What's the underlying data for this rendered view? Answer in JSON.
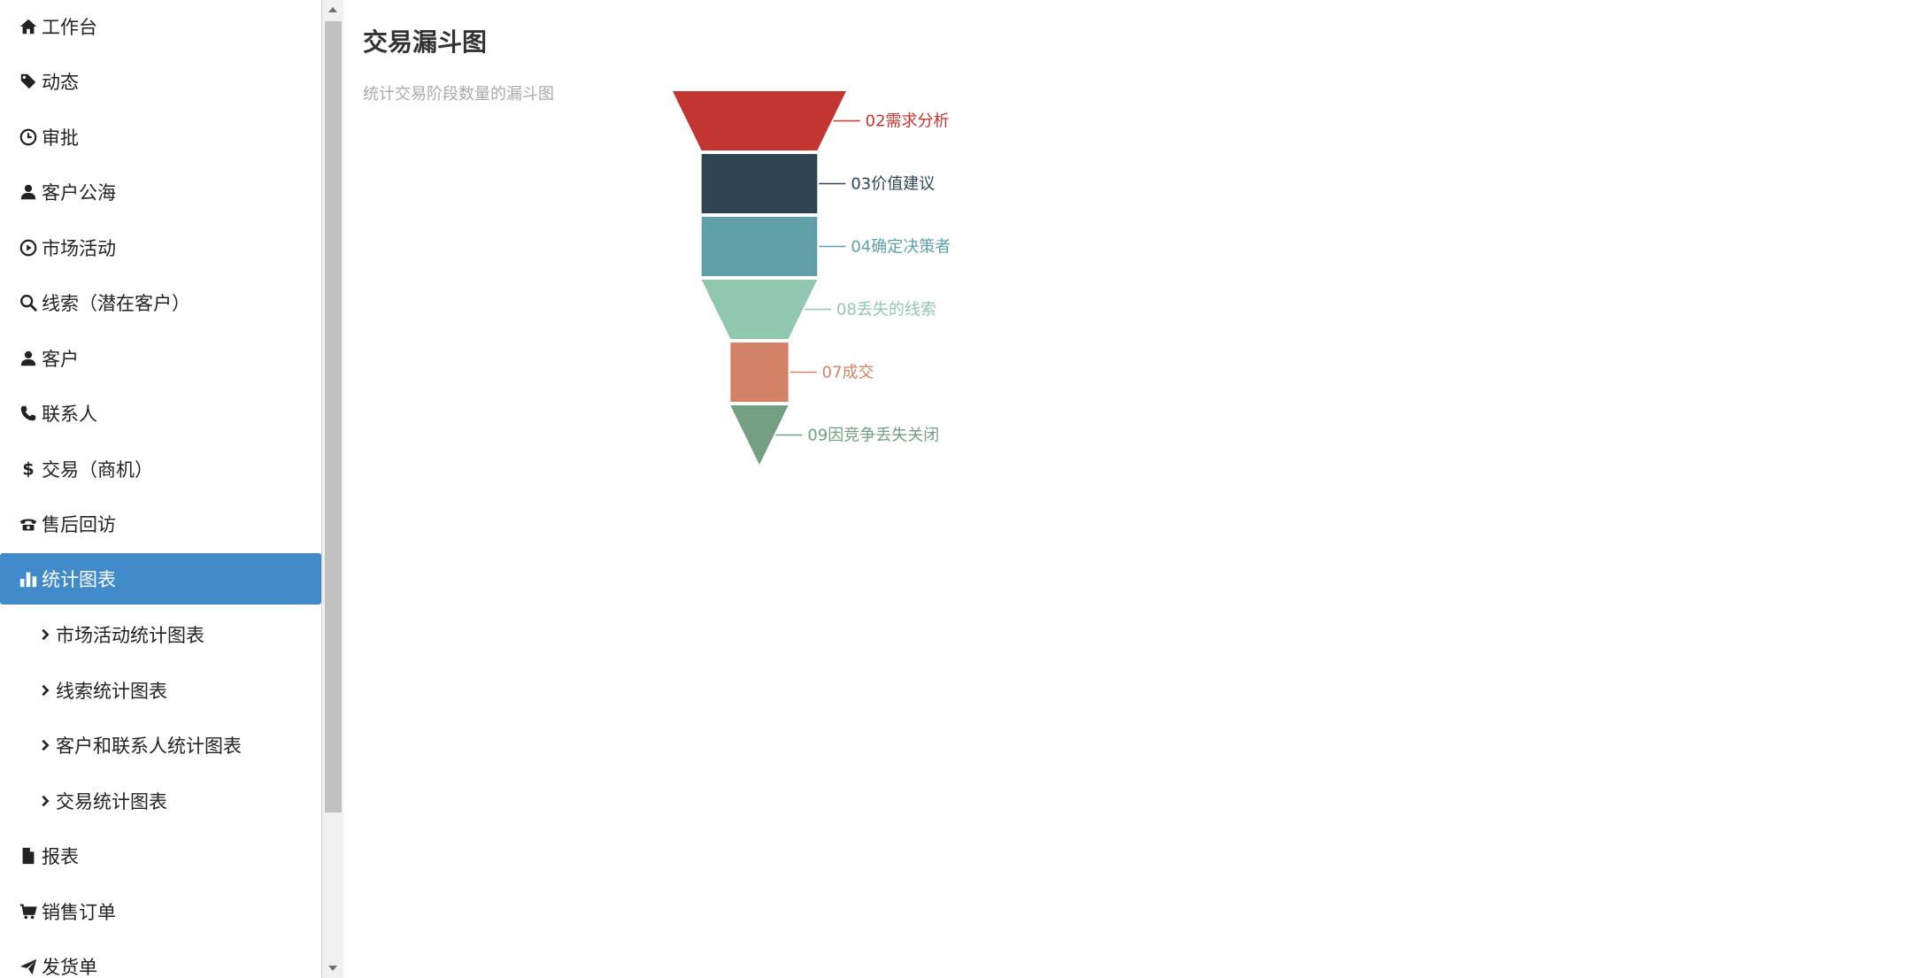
{
  "sidebar": {
    "items": [
      {
        "label": "工作台",
        "icon": "home-icon"
      },
      {
        "label": "动态",
        "icon": "tag-icon"
      },
      {
        "label": "审批",
        "icon": "clock-icon"
      },
      {
        "label": "客户公海",
        "icon": "user-icon"
      },
      {
        "label": "市场活动",
        "icon": "play-circle-icon"
      },
      {
        "label": "线索（潜在客户）",
        "icon": "search-icon"
      },
      {
        "label": "客户",
        "icon": "user-icon"
      },
      {
        "label": "联系人",
        "icon": "phone-icon"
      },
      {
        "label": "交易（商机）",
        "icon": "dollar-icon"
      },
      {
        "label": "售后回访",
        "icon": "phone-alt-icon"
      },
      {
        "label": "统计图表",
        "icon": "stats-icon",
        "active": true
      },
      {
        "label": "市场活动统计图表",
        "icon": "chevron-right-icon",
        "sub": true
      },
      {
        "label": "线索统计图表",
        "icon": "chevron-right-icon",
        "sub": true
      },
      {
        "label": "客户和联系人统计图表",
        "icon": "chevron-right-icon",
        "sub": true
      },
      {
        "label": "交易统计图表",
        "icon": "chevron-right-icon",
        "sub": true
      },
      {
        "label": "报表",
        "icon": "file-icon"
      },
      {
        "label": "销售订单",
        "icon": "cart-icon"
      },
      {
        "label": "发货单",
        "icon": "send-icon"
      }
    ]
  },
  "main": {
    "title": "交易漏斗图",
    "subtitle": "统计交易阶段数量的漏斗图"
  },
  "colors": {
    "active_nav": "#428bca",
    "subtitle": "#aaaaaa"
  },
  "chart_data": {
    "type": "funnel",
    "title": "交易漏斗图",
    "subtitle": "统计交易阶段数量的漏斗图",
    "note": "Widths of each stage decrease top to bottom; values are relative and not printed on the chart.",
    "stages": [
      {
        "name": "02需求分析",
        "value": 6,
        "color": "#c23531"
      },
      {
        "name": "03价值建议",
        "value": 4,
        "color": "#2f4554"
      },
      {
        "name": "04确定决策者",
        "value": 4,
        "color": "#61a0a8"
      },
      {
        "name": "08丢失的线索",
        "value": 4,
        "color": "#91c7ae"
      },
      {
        "name": "07成交",
        "value": 2,
        "color": "#d48265"
      },
      {
        "name": "09因竞争丢失关闭",
        "value": 2,
        "color": "#749f83"
      }
    ]
  }
}
